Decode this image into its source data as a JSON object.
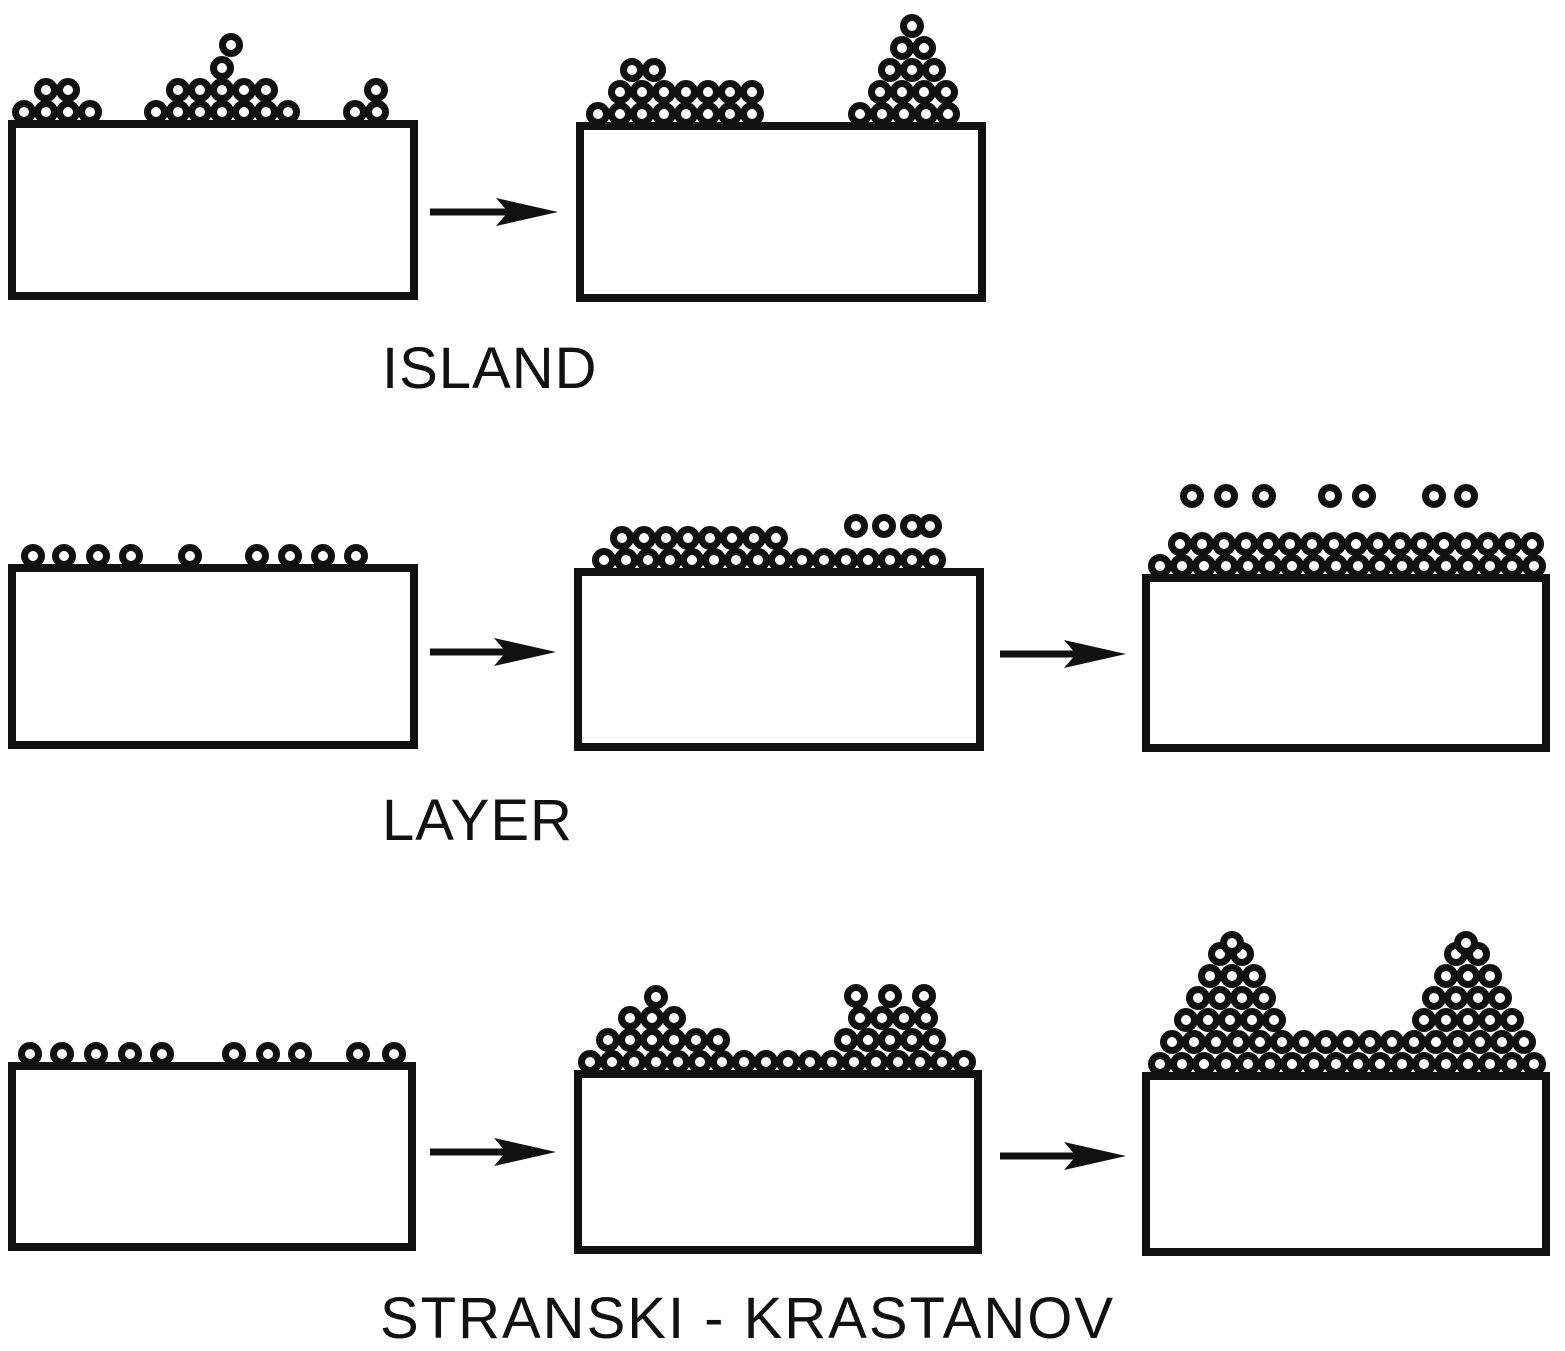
{
  "colors": {
    "ink": "#111111",
    "background": "#ffffff"
  },
  "rows": [
    {
      "id": "island",
      "caption": "ISLAND",
      "stage_count": 2
    },
    {
      "id": "layer",
      "caption": "LAYER",
      "stage_count": 3
    },
    {
      "id": "stranski-krastanov",
      "caption": "STRANSKI - KRASTANOV",
      "stage_count": 3
    }
  ]
}
